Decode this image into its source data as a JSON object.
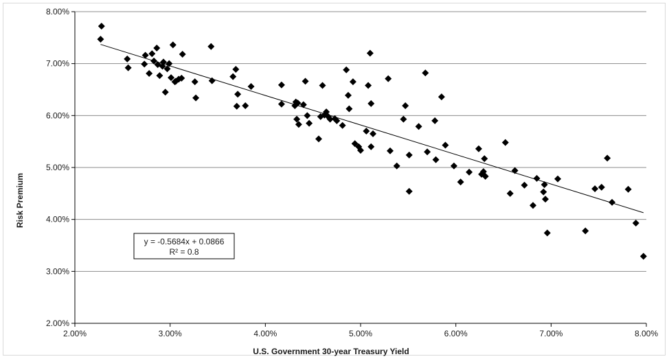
{
  "chart_data": {
    "type": "scatter",
    "xlabel": "U.S. Government 30-year Treasury Yield",
    "ylabel": "Risk Premium",
    "xlim": [
      0.02,
      0.08
    ],
    "ylim": [
      0.02,
      0.08
    ],
    "x_ticks": [
      0.02,
      0.03,
      0.04,
      0.05,
      0.06,
      0.07,
      0.08
    ],
    "y_ticks": [
      0.02,
      0.03,
      0.04,
      0.05,
      0.06,
      0.07,
      0.08
    ],
    "x_tick_labels": [
      "2.00%",
      "3.00%",
      "4.00%",
      "5.00%",
      "6.00%",
      "7.00%",
      "8.00%"
    ],
    "y_tick_labels": [
      "2.00%",
      "3.00%",
      "4.00%",
      "5.00%",
      "6.00%",
      "7.00%",
      "8.00%"
    ],
    "grid": "horizontal",
    "marker": "diamond",
    "marker_color": "#000000",
    "trendline": {
      "type": "linear",
      "slope": -0.5684,
      "intercept": 0.0866,
      "x_range": [
        0.0227,
        0.0797
      ],
      "equation": "y = -0.5684x + 0.0866",
      "r_squared": "R² = 0.8"
    },
    "points": [
      [
        0.0228,
        0.0772
      ],
      [
        0.0227,
        0.0747
      ],
      [
        0.0255,
        0.0709
      ],
      [
        0.0256,
        0.0692
      ],
      [
        0.0273,
        0.0699
      ],
      [
        0.0274,
        0.0716
      ],
      [
        0.0278,
        0.0681
      ],
      [
        0.0281,
        0.0719
      ],
      [
        0.0283,
        0.0705
      ],
      [
        0.0286,
        0.073
      ],
      [
        0.0287,
        0.0698
      ],
      [
        0.0289,
        0.0677
      ],
      [
        0.0292,
        0.0695
      ],
      [
        0.0293,
        0.0703
      ],
      [
        0.0295,
        0.0645
      ],
      [
        0.0297,
        0.069
      ],
      [
        0.0299,
        0.07
      ],
      [
        0.0301,
        0.0673
      ],
      [
        0.0303,
        0.0736
      ],
      [
        0.0305,
        0.0665
      ],
      [
        0.0306,
        0.0666
      ],
      [
        0.0309,
        0.067
      ],
      [
        0.0312,
        0.0672
      ],
      [
        0.0313,
        0.0718
      ],
      [
        0.0326,
        0.0665
      ],
      [
        0.0327,
        0.0634
      ],
      [
        0.0343,
        0.0733
      ],
      [
        0.0344,
        0.0667
      ],
      [
        0.0366,
        0.0675
      ],
      [
        0.0369,
        0.0689
      ],
      [
        0.037,
        0.0618
      ],
      [
        0.0371,
        0.0641
      ],
      [
        0.0379,
        0.0619
      ],
      [
        0.0385,
        0.0656
      ],
      [
        0.0417,
        0.0659
      ],
      [
        0.0417,
        0.0622
      ],
      [
        0.0431,
        0.0619
      ],
      [
        0.0432,
        0.0626
      ],
      [
        0.0433,
        0.0593
      ],
      [
        0.0434,
        0.0624
      ],
      [
        0.0435,
        0.0583
      ],
      [
        0.044,
        0.0621
      ],
      [
        0.0442,
        0.0666
      ],
      [
        0.0444,
        0.06
      ],
      [
        0.0446,
        0.0585
      ],
      [
        0.0456,
        0.0555
      ],
      [
        0.0458,
        0.0598
      ],
      [
        0.046,
        0.0658
      ],
      [
        0.0462,
        0.0601
      ],
      [
        0.0464,
        0.0607
      ],
      [
        0.0466,
        0.0598
      ],
      [
        0.0468,
        0.0593
      ],
      [
        0.0473,
        0.0594
      ],
      [
        0.0475,
        0.059
      ],
      [
        0.0481,
        0.0581
      ],
      [
        0.0485,
        0.0688
      ],
      [
        0.0487,
        0.0639
      ],
      [
        0.0488,
        0.0613
      ],
      [
        0.0492,
        0.0665
      ],
      [
        0.0494,
        0.0546
      ],
      [
        0.0498,
        0.054
      ],
      [
        0.05,
        0.0533
      ],
      [
        0.0506,
        0.057
      ],
      [
        0.0508,
        0.0658
      ],
      [
        0.051,
        0.072
      ],
      [
        0.0511,
        0.054
      ],
      [
        0.0511,
        0.0623
      ],
      [
        0.0513,
        0.0565
      ],
      [
        0.0529,
        0.0671
      ],
      [
        0.0531,
        0.0532
      ],
      [
        0.0538,
        0.0503
      ],
      [
        0.0545,
        0.0593
      ],
      [
        0.0547,
        0.0619
      ],
      [
        0.0551,
        0.0524
      ],
      [
        0.0551,
        0.0454
      ],
      [
        0.0561,
        0.0579
      ],
      [
        0.0568,
        0.0682
      ],
      [
        0.057,
        0.053
      ],
      [
        0.0578,
        0.059
      ],
      [
        0.0579,
        0.0515
      ],
      [
        0.0585,
        0.0636
      ],
      [
        0.0589,
        0.0543
      ],
      [
        0.0598,
        0.0503
      ],
      [
        0.0605,
        0.0472
      ],
      [
        0.0614,
        0.0491
      ],
      [
        0.0624,
        0.0536
      ],
      [
        0.0627,
        0.0487
      ],
      [
        0.0629,
        0.0492
      ],
      [
        0.063,
        0.0517
      ],
      [
        0.0631,
        0.0483
      ],
      [
        0.0652,
        0.0548
      ],
      [
        0.0657,
        0.045
      ],
      [
        0.0662,
        0.0494
      ],
      [
        0.0672,
        0.0466
      ],
      [
        0.0681,
        0.0427
      ],
      [
        0.0685,
        0.0479
      ],
      [
        0.0692,
        0.0453
      ],
      [
        0.0693,
        0.0467
      ],
      [
        0.0694,
        0.0439
      ],
      [
        0.0696,
        0.0374
      ],
      [
        0.0707,
        0.0478
      ],
      [
        0.0736,
        0.0378
      ],
      [
        0.0746,
        0.0459
      ],
      [
        0.0753,
        0.0462
      ],
      [
        0.0759,
        0.0518
      ],
      [
        0.0764,
        0.0433
      ],
      [
        0.0781,
        0.0458
      ],
      [
        0.0789,
        0.0393
      ],
      [
        0.0797,
        0.0329
      ]
    ]
  }
}
